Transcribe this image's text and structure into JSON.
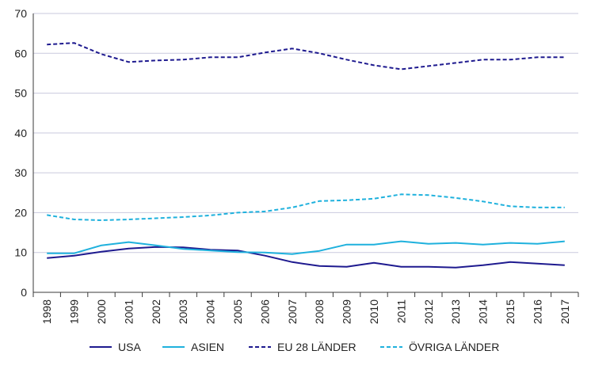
{
  "chart_data": {
    "type": "line",
    "title": "",
    "xlabel": "",
    "ylabel": "",
    "ylim": [
      0,
      70
    ],
    "yticks": [
      0,
      10,
      20,
      30,
      40,
      50,
      60,
      70
    ],
    "grid": "horizontal",
    "legend_position": "bottom",
    "categories": [
      "1998",
      "1999",
      "2000",
      "2001",
      "2002",
      "2003",
      "2004",
      "2005",
      "2006",
      "2007",
      "2008",
      "2009",
      "2010",
      "2011",
      "2012",
      "2013",
      "2014",
      "2015",
      "2016",
      "2017"
    ],
    "series": [
      {
        "name": "USA",
        "color": "#1e1a8f",
        "dash": "solid",
        "values": [
          8.6,
          9.2,
          10.2,
          11.0,
          11.4,
          11.3,
          10.7,
          10.5,
          9.2,
          7.6,
          6.6,
          6.4,
          7.4,
          6.4,
          6.4,
          6.2,
          6.8,
          7.6,
          7.2,
          6.8
        ]
      },
      {
        "name": "ASIEN",
        "color": "#1fb1dd",
        "dash": "solid",
        "values": [
          9.8,
          9.8,
          11.8,
          12.6,
          11.8,
          10.9,
          10.5,
          10.1,
          10.0,
          9.6,
          10.4,
          12.0,
          12.0,
          12.8,
          12.2,
          12.4,
          12.0,
          12.4,
          12.2,
          12.8
        ]
      },
      {
        "name": "EU 28 LÄNDER",
        "color": "#1e1a8f",
        "dash": "dashed",
        "values": [
          62.2,
          62.6,
          59.8,
          57.8,
          58.2,
          58.4,
          59.0,
          59.0,
          60.2,
          61.2,
          60.0,
          58.4,
          57.0,
          56.0,
          56.8,
          57.6,
          58.4,
          58.4,
          59.0,
          59.0
        ]
      },
      {
        "name": "ÖVRIGA LÄNDER",
        "color": "#1fb1dd",
        "dash": "dashed",
        "values": [
          19.4,
          18.3,
          18.1,
          18.3,
          18.6,
          18.9,
          19.3,
          20.0,
          20.3,
          21.3,
          22.9,
          23.1,
          23.5,
          24.6,
          24.4,
          23.7,
          22.8,
          21.6,
          21.3,
          21.3
        ]
      }
    ]
  }
}
